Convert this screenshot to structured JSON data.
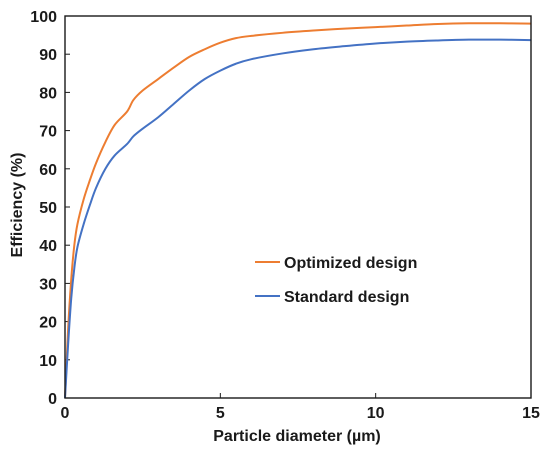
{
  "chart_data": {
    "type": "line",
    "title": "",
    "xlabel": "Particle diameter (µm)",
    "ylabel": "Efficiency (%)",
    "xlim": [
      0,
      15
    ],
    "ylim": [
      0,
      100
    ],
    "xticks": [
      0,
      5,
      10,
      15
    ],
    "yticks": [
      0,
      10,
      20,
      30,
      40,
      50,
      60,
      70,
      80,
      90,
      100
    ],
    "xtick_labels": [
      "0",
      "5",
      "10",
      "15"
    ],
    "ytick_labels": [
      "0",
      "10",
      "20",
      "30",
      "40",
      "50",
      "60",
      "70",
      "80",
      "90",
      "100"
    ],
    "grid": false,
    "legend_position": "center-right",
    "series": [
      {
        "name": "Optimized design",
        "color": "#ED7D31",
        "x": [
          0,
          0.1,
          0.2,
          0.3,
          0.4,
          0.6,
          0.8,
          1.0,
          1.3,
          1.6,
          2.0,
          2.2,
          2.5,
          3.0,
          3.5,
          4.0,
          4.5,
          5.0,
          5.5,
          6.0,
          7.0,
          8.0,
          9.0,
          10.0,
          11.0,
          12.0,
          13.0,
          14.0,
          15.0
        ],
        "y": [
          0,
          18,
          31,
          40,
          45.5,
          52,
          57,
          61.5,
          67,
          71.5,
          75,
          78,
          80.5,
          83.5,
          86.5,
          89.3,
          91.3,
          93,
          94.2,
          94.8,
          95.6,
          96.2,
          96.7,
          97.1,
          97.5,
          97.9,
          98.1,
          98.1,
          98.0
        ]
      },
      {
        "name": "Standard design",
        "color": "#4472C4",
        "x": [
          0,
          0.1,
          0.2,
          0.3,
          0.4,
          0.6,
          0.8,
          1.0,
          1.3,
          1.6,
          2.0,
          2.2,
          2.5,
          3.0,
          3.5,
          4.0,
          4.5,
          5.0,
          5.5,
          6.0,
          7.0,
          8.0,
          9.0,
          10.0,
          11.0,
          12.0,
          13.0,
          14.0,
          15.0
        ],
        "y": [
          0,
          14,
          26,
          34,
          39.5,
          45.5,
          50.5,
          55,
          60,
          63.5,
          66.5,
          68.5,
          70.5,
          73.5,
          77,
          80.5,
          83.5,
          85.7,
          87.5,
          88.7,
          90.2,
          91.3,
          92.1,
          92.8,
          93.3,
          93.6,
          93.8,
          93.8,
          93.7
        ]
      }
    ]
  }
}
